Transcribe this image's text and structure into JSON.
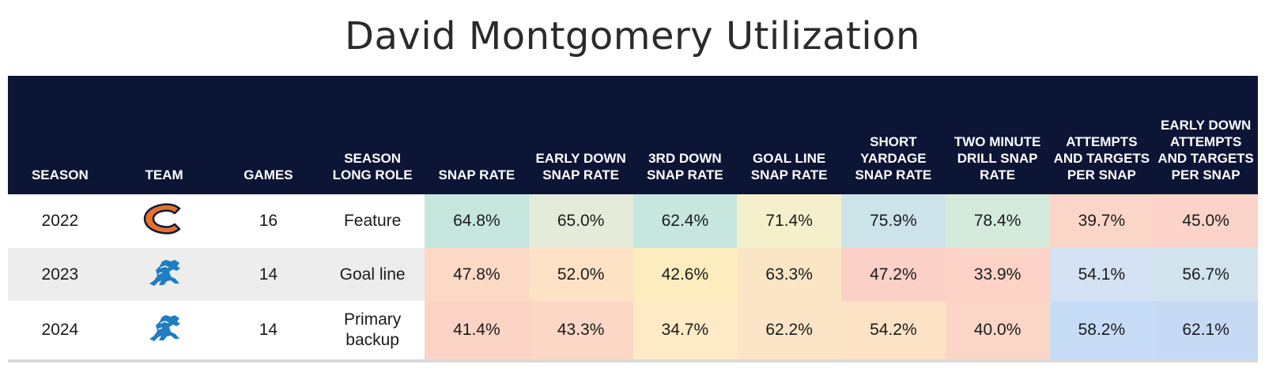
{
  "title": "David Montgomery Utilization",
  "columns": [
    "SEASON",
    "TEAM",
    "GAMES",
    "SEASON LONG ROLE",
    "SNAP RATE",
    "EARLY DOWN SNAP RATE",
    "3RD DOWN SNAP RATE",
    "GOAL LINE SNAP RATE",
    "SHORT YARDAGE SNAP RATE",
    "TWO MINUTE DRILL SNAP RATE",
    "ATTEMPTS AND TARGETS PER SNAP",
    "EARLY DOWN ATTEMPTS AND TARGETS PER SNAP"
  ],
  "rows": [
    {
      "season": "2022",
      "team_logo": "chicago-bears-c-logo",
      "games": "16",
      "role": "Feature",
      "values": [
        "64.8%",
        "65.0%",
        "62.4%",
        "71.4%",
        "75.9%",
        "78.4%",
        "39.7%",
        "45.0%"
      ],
      "colors": [
        "#c6e6de",
        "#e4ecd9",
        "#c6e6de",
        "#f5f0cc",
        "#cde3ea",
        "#d4ebdc",
        "#fbd6c8",
        "#fbd3c8"
      ]
    },
    {
      "season": "2023",
      "team_logo": "detroit-lions-logo",
      "games": "14",
      "role": "Goal line",
      "values": [
        "47.8%",
        "52.0%",
        "42.6%",
        "63.3%",
        "47.2%",
        "33.9%",
        "54.1%",
        "56.7%"
      ],
      "colors": [
        "#fcd9c5",
        "#fee2c6",
        "#fdecbd",
        "#fae6c4",
        "#fbd1c7",
        "#fdd3c7",
        "#d4e2f4",
        "#d1e4ee"
      ]
    },
    {
      "season": "2024",
      "team_logo": "detroit-lions-logo",
      "games": "14",
      "role": "Primary backup",
      "values": [
        "41.4%",
        "43.3%",
        "34.7%",
        "62.2%",
        "54.2%",
        "40.0%",
        "58.2%",
        "62.1%"
      ],
      "colors": [
        "#fbd4c5",
        "#fcd7c6",
        "#feeac4",
        "#fbe5c6",
        "#fde3c6",
        "#fbd6c6",
        "#c7dcf6",
        "#c6daf6"
      ]
    }
  ]
}
